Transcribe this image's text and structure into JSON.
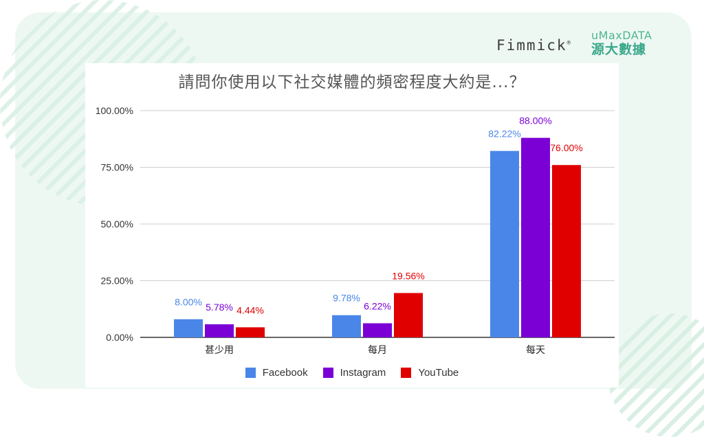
{
  "brand": {
    "fimmick_text": "Fimmick",
    "fimmick_mark": "®",
    "umax_en": "uMaxDATA",
    "umax_zh": "源大數據"
  },
  "chart_data": {
    "type": "bar",
    "title": "請問你使用以下社交媒體的頻密程度大約是...？",
    "categories": [
      "甚少用",
      "每月",
      "每天"
    ],
    "series": [
      {
        "name": "Facebook",
        "color": "#4a86e8",
        "values": [
          8.0,
          9.78,
          82.22
        ],
        "labels": [
          "8.00%",
          "9.78%",
          "82.22%"
        ],
        "label_color": "#4a86e8"
      },
      {
        "name": "Instagram",
        "color": "#7b00d6",
        "values": [
          5.78,
          6.22,
          88.0
        ],
        "labels": [
          "5.78%",
          "6.22%",
          "88.00%"
        ],
        "label_color": "#7b00d6"
      },
      {
        "name": "YouTube",
        "color": "#e00000",
        "values": [
          4.44,
          19.56,
          76.0
        ],
        "labels": [
          "4.44%",
          "19.56%",
          "76.00%"
        ],
        "label_color": "#e00000"
      }
    ],
    "ylim": [
      0,
      100
    ],
    "yticks": [
      0,
      25,
      50,
      75,
      100
    ],
    "ytick_labels": [
      "0.00%",
      "25.00%",
      "50.00%",
      "75.00%",
      "100.00%"
    ],
    "grid": true,
    "legend_position": "bottom"
  }
}
